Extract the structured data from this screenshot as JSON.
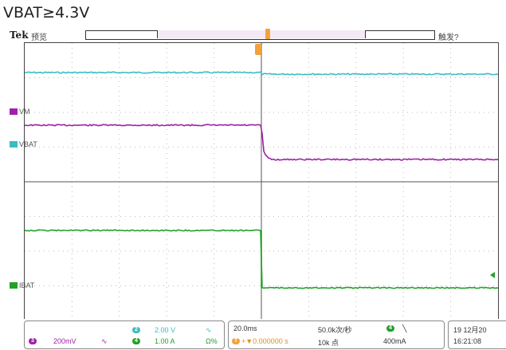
{
  "caption": "VBAT≥4.3V",
  "header": {
    "brand": "Tek",
    "mode": "预览",
    "trigger_status": "触发?"
  },
  "channel_labels": {
    "vm": "VM",
    "vbat": "VBAT",
    "ibat": "IBAT"
  },
  "colors": {
    "ch2": "#3bbcc4",
    "ch3": "#a020a8",
    "ch4": "#24a02a",
    "trigger": "#f3a23a"
  },
  "status_bar": {
    "ch3_scale": "200mV",
    "ch2_scale": "2.00 V",
    "ch4_scale": "1.00 A",
    "ch4_offset": "Ω%",
    "timebase": "20.0ms",
    "trigger_pos": "+▼0.000000 s",
    "sample_rate": "50.0k次/秒",
    "record_length": "10k 点",
    "trig_channel_level": "400mA",
    "date": "19 12月20",
    "time": "16:21:08"
  },
  "icons": {
    "ch3_marker": "channel-3-marker-icon",
    "ch4_marker": "channel-4-marker-icon",
    "trigger_marker": "trigger-position-icon"
  }
}
